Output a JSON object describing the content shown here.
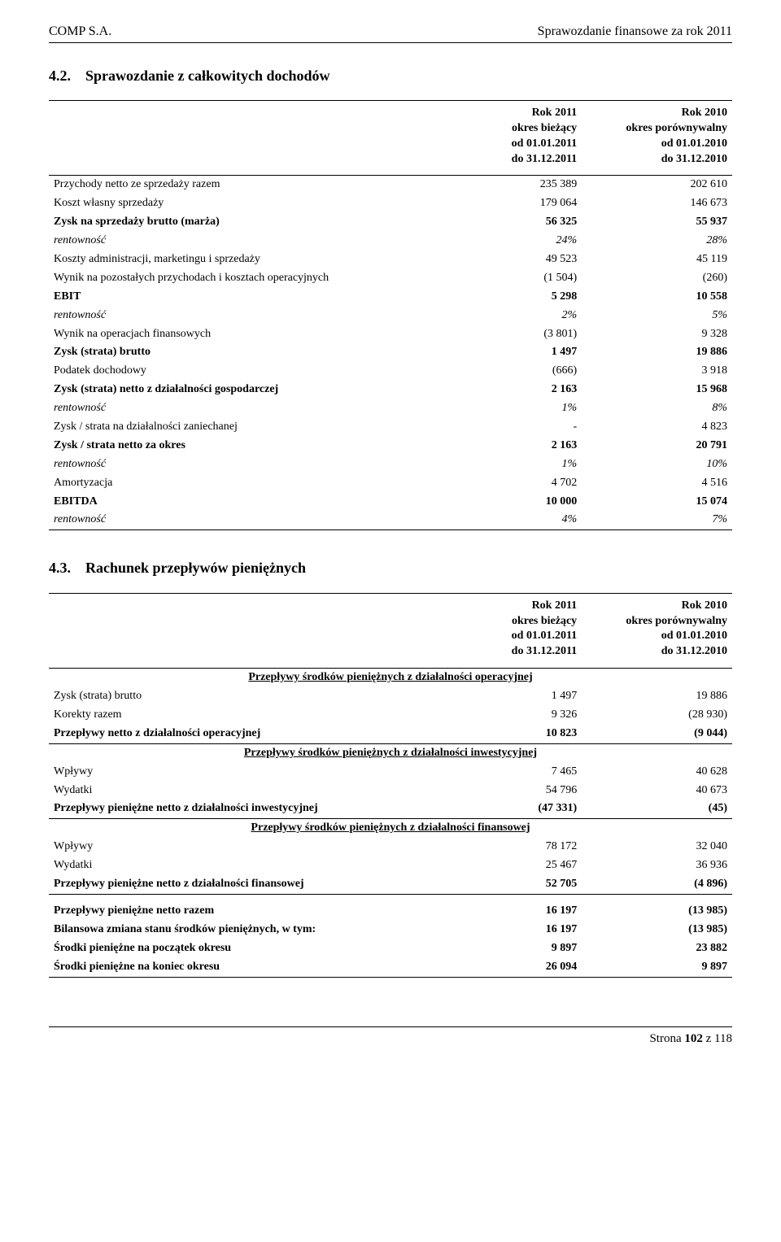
{
  "header": {
    "company": "COMP S.A.",
    "report_title": "Sprawozdanie finansowe za rok 2011"
  },
  "section1": {
    "number": "4.2.",
    "title": "Sprawozdanie z całkowitych dochodów",
    "period_cur": "Rok 2011\nokres bieżący\nod 01.01.2011\ndo 31.12.2011",
    "period_prev": "Rok 2010\nokres porównywalny\nod 01.01.2010\ndo 31.12.2010",
    "rows": [
      {
        "label": "Przychody netto ze sprzedaży razem",
        "cur": "235 389",
        "prev": "202 610"
      },
      {
        "label": "Koszt własny sprzedaży",
        "cur": "179 064",
        "prev": "146 673"
      },
      {
        "label": "Zysk  na sprzedaży brutto  (marża)",
        "cur": "56 325",
        "prev": "55 937",
        "bold": true
      },
      {
        "label": "rentowność",
        "cur": "24%",
        "prev": "28%",
        "italic": true,
        "indent": true
      },
      {
        "label": "Koszty administracji, marketingu i sprzedaży",
        "cur": "49 523",
        "prev": "45 119"
      },
      {
        "label": "Wynik na pozostałych przychodach i kosztach operacyjnych",
        "cur": "(1 504)",
        "prev": "(260)"
      },
      {
        "label": "EBIT",
        "cur": "5 298",
        "prev": "10 558",
        "bold": true
      },
      {
        "label": "rentowność",
        "cur": "2%",
        "prev": "5%",
        "italic": true,
        "indent": true
      },
      {
        "label": "Wynik na operacjach finansowych",
        "cur": "(3 801)",
        "prev": "9 328"
      },
      {
        "label": "Zysk (strata) brutto",
        "cur": "1 497",
        "prev": "19 886",
        "bold": true
      },
      {
        "label": "Podatek dochodowy",
        "cur": "(666)",
        "prev": "3 918"
      },
      {
        "label": "Zysk (strata) netto z działalności gospodarczej",
        "cur": "2 163",
        "prev": "15 968",
        "bold": true
      },
      {
        "label": "rentowność",
        "cur": "1%",
        "prev": "8%",
        "italic": true,
        "indent": true
      },
      {
        "label": "Zysk / strata na działalności zaniechanej",
        "cur": "-",
        "prev": "4 823"
      },
      {
        "label": "Zysk / strata netto za okres",
        "cur": "2 163",
        "prev": "20 791",
        "bold": true
      },
      {
        "label": "rentowność",
        "cur": "1%",
        "prev": "10%",
        "italic": true,
        "indent": true
      },
      {
        "label": "Amortyzacja",
        "cur": "4 702",
        "prev": "4 516"
      },
      {
        "label": "EBITDA",
        "cur": "10 000",
        "prev": "15 074",
        "bold": true
      },
      {
        "label": "rentowność",
        "cur": "4%",
        "prev": "7%",
        "italic": true,
        "indent": true,
        "last": true
      }
    ]
  },
  "section2": {
    "number": "4.3.",
    "title": "Rachunek przepływów pieniężnych",
    "period_cur": "Rok 2011\nokres bieżący\nod 01.01.2011\ndo 31.12.2011",
    "period_prev": "Rok 2010\nokres porównywalny\nod 01.01.2010\ndo 31.12.2010",
    "groups": [
      {
        "heading": "Przepływy środków pieniężnych z działalności operacyjnej",
        "rows": [
          {
            "label": "Zysk (strata) brutto",
            "cur": "1 497",
            "prev": "19 886"
          },
          {
            "label": "Korekty razem",
            "cur": "9 326",
            "prev": "(28 930)"
          },
          {
            "label": "Przepływy netto z działalności operacyjnej",
            "cur": "10 823",
            "prev": "(9 044)",
            "bold": true,
            "rule": true
          }
        ]
      },
      {
        "heading": "Przepływy środków pieniężnych z działalności inwestycyjnej",
        "rows": [
          {
            "label": "Wpływy",
            "cur": "7 465",
            "prev": "40 628"
          },
          {
            "label": "Wydatki",
            "cur": "54 796",
            "prev": "40 673"
          },
          {
            "label": "Przepływy pieniężne netto z działalności inwestycyjnej",
            "cur": "(47 331)",
            "prev": "(45)",
            "bold": true,
            "rule": true
          }
        ]
      },
      {
        "heading": "Przepływy środków pieniężnych z działalności finansowej",
        "rows": [
          {
            "label": "Wpływy",
            "cur": "78 172",
            "prev": "32 040"
          },
          {
            "label": "Wydatki",
            "cur": "25 467",
            "prev": "36 936"
          },
          {
            "label": "Przepływy pieniężne netto z działalności finansowej",
            "cur": "52 705",
            "prev": "(4 896)",
            "bold": true,
            "rule": true
          }
        ]
      },
      {
        "heading": null,
        "rows": [
          {
            "label": "Przepływy pieniężne netto razem",
            "cur": "16 197",
            "prev": "(13 985)",
            "bold": true
          },
          {
            "label": "Bilansowa zmiana stanu środków pieniężnych, w tym:",
            "cur": "16 197",
            "prev": "(13 985)",
            "bold": true
          },
          {
            "label": "Środki pieniężne na początek okresu",
            "cur": "9 897",
            "prev": "23 882",
            "bold": true
          },
          {
            "label": "Środki pieniężne na koniec okresu",
            "cur": "26 094",
            "prev": "9 897",
            "bold": true,
            "rule": true
          }
        ]
      }
    ]
  },
  "footer": {
    "page_label_prefix": "Strona ",
    "page_current_bold": "102",
    "page_label_mid": " z ",
    "page_total": "118"
  }
}
